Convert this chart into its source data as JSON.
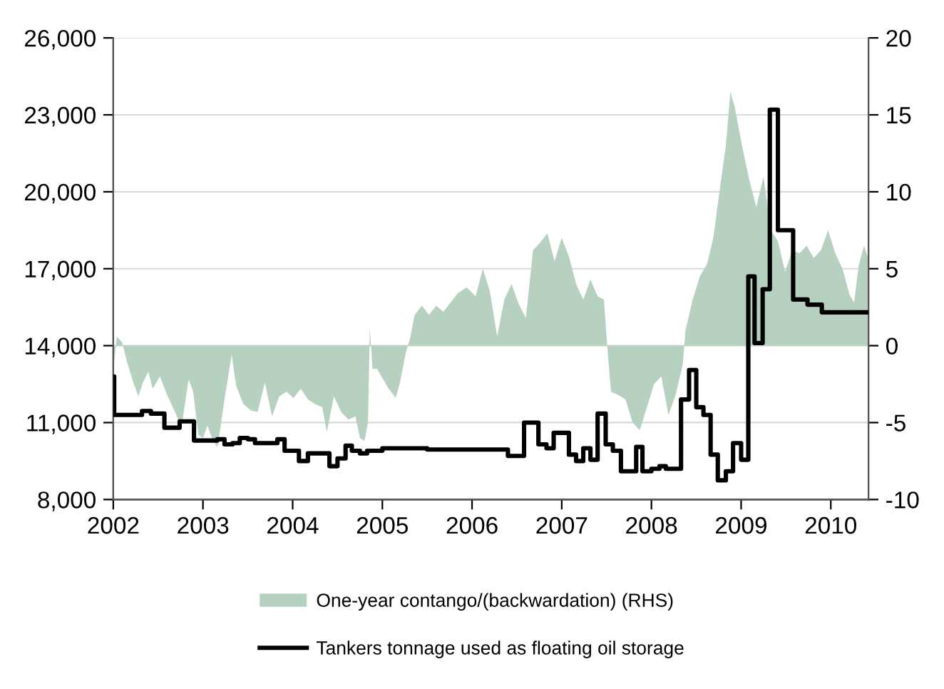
{
  "chart_data": {
    "type": "step",
    "xlim": [
      2002,
      2010.42
    ],
    "xticks": [
      2002,
      2003,
      2004,
      2005,
      2006,
      2007,
      2008,
      2009,
      2010
    ],
    "ylim": [
      8000,
      26000
    ],
    "yticks": [
      {
        "value": 8000,
        "label": "8,000"
      },
      {
        "value": 11000,
        "label": "11,000"
      },
      {
        "value": 14000,
        "label": "14,000"
      },
      {
        "value": 17000,
        "label": "17,000"
      },
      {
        "value": 20000,
        "label": "20,000"
      },
      {
        "value": 23000,
        "label": "23,000"
      },
      {
        "value": 26000,
        "label": "26,000"
      }
    ],
    "y2lim": [
      -10,
      20
    ],
    "y2ticks": [
      -10,
      -5,
      0,
      5,
      10,
      15,
      20
    ],
    "grid": "y",
    "legend": "bottom",
    "series": [
      {
        "name": "One-year contango/(backwardation) (RHS)",
        "type": "area",
        "axis": "y2",
        "color": "#b7d1c0",
        "x": [
          2002.0,
          2002.04,
          2002.1,
          2002.15,
          2002.23,
          2002.28,
          2002.33,
          2002.39,
          2002.44,
          2002.52,
          2002.6,
          2002.68,
          2002.76,
          2002.84,
          2002.89,
          2002.95,
          2003.0,
          2003.05,
          2003.1,
          2003.16,
          2003.19,
          2003.24,
          2003.32,
          2003.37,
          2003.45,
          2003.53,
          2003.61,
          2003.69,
          2003.77,
          2003.85,
          2003.93,
          2004.01,
          2004.09,
          2004.17,
          2004.25,
          2004.33,
          2004.38,
          2004.46,
          2004.54,
          2004.62,
          2004.7,
          2004.75,
          2004.8,
          2004.84,
          2004.86,
          2004.89,
          2004.94,
          2005.02,
          2005.07,
          2005.15,
          2005.2,
          2005.26,
          2005.31,
          2005.36,
          2005.44,
          2005.52,
          2005.6,
          2005.68,
          2005.76,
          2005.84,
          2005.94,
          2006.04,
          2006.12,
          2006.2,
          2006.28,
          2006.36,
          2006.44,
          2006.52,
          2006.6,
          2006.68,
          2006.76,
          2006.84,
          2006.92,
          2007.0,
          2007.08,
          2007.16,
          2007.24,
          2007.32,
          2007.4,
          2007.47,
          2007.52,
          2007.55,
          2007.63,
          2007.71,
          2007.79,
          2007.87,
          2007.95,
          2008.03,
          2008.11,
          2008.19,
          2008.27,
          2008.35,
          2008.38,
          2008.46,
          2008.54,
          2008.62,
          2008.69,
          2008.77,
          2008.83,
          2008.88,
          2008.93,
          2009.01,
          2009.09,
          2009.17,
          2009.25,
          2009.33,
          2009.41,
          2009.49,
          2009.57,
          2009.65,
          2009.73,
          2009.81,
          2009.89,
          2009.97,
          2010.05,
          2010.13,
          2010.21,
          2010.26,
          2010.31,
          2010.37,
          2010.41
        ],
        "values": [
          -1.6,
          0.6,
          0.2,
          -1.0,
          -2.5,
          -3.3,
          -2.4,
          -1.7,
          -2.8,
          -2.0,
          -3.2,
          -4.2,
          -5.3,
          -2.2,
          -3.0,
          -5.8,
          -6.0,
          -5.2,
          -6.0,
          -6.6,
          -5.5,
          -3.5,
          -0.6,
          -2.6,
          -3.8,
          -4.2,
          -4.3,
          -2.4,
          -4.6,
          -3.3,
          -3.0,
          -3.4,
          -2.8,
          -3.5,
          -3.8,
          -4.0,
          -5.6,
          -3.3,
          -4.3,
          -4.8,
          -4.6,
          -6.0,
          -6.2,
          -5.0,
          1.2,
          -1.5,
          -1.5,
          -2.3,
          -2.8,
          -3.4,
          -2.3,
          -0.5,
          0.5,
          2.0,
          2.6,
          2.0,
          2.6,
          2.2,
          2.8,
          3.4,
          3.8,
          3.2,
          5.0,
          3.5,
          0.6,
          3.0,
          4.0,
          2.7,
          1.8,
          6.2,
          6.7,
          7.3,
          5.5,
          7.0,
          5.8,
          4.0,
          3.0,
          4.3,
          3.2,
          3.0,
          -1.0,
          -3.0,
          -3.2,
          -3.5,
          -5.0,
          -5.5,
          -4.0,
          -2.5,
          -2.0,
          -4.5,
          -3.2,
          -1.2,
          1.0,
          3.0,
          4.5,
          5.3,
          7.0,
          10.5,
          13.0,
          16.5,
          15.5,
          13.0,
          10.8,
          9.0,
          11.0,
          7.5,
          6.8,
          4.8,
          6.2,
          6.0,
          6.5,
          5.7,
          6.2,
          7.5,
          6.0,
          5.0,
          3.3,
          2.8,
          5.2,
          6.5,
          5.8
        ]
      },
      {
        "name": "Tankers tonnage used as floating oil storage",
        "color": "#000000",
        "x": [
          2002.0,
          2002.01,
          2002.32,
          2002.42,
          2002.57,
          2002.74,
          2002.9,
          2003.16,
          2003.24,
          2003.33,
          2003.41,
          2003.5,
          2003.58,
          2003.83,
          2003.91,
          2004.07,
          2004.17,
          2004.41,
          2004.5,
          2004.59,
          2004.66,
          2004.75,
          2004.83,
          2005.0,
          2005.5,
          2006.4,
          2006.58,
          2006.74,
          2006.83,
          2006.91,
          2007.08,
          2007.16,
          2007.24,
          2007.32,
          2007.4,
          2007.49,
          2007.57,
          2007.66,
          2007.83,
          2007.9,
          2008.0,
          2008.09,
          2008.16,
          2008.33,
          2008.42,
          2008.5,
          2008.58,
          2008.66,
          2008.74,
          2008.83,
          2008.91,
          2009.0,
          2009.08,
          2009.15,
          2009.24,
          2009.32,
          2009.41,
          2009.58,
          2009.74,
          2009.9,
          2010.42
        ],
        "values": [
          12800,
          11300,
          11450,
          11350,
          10800,
          11050,
          10300,
          10350,
          10150,
          10200,
          10400,
          10350,
          10200,
          10350,
          9900,
          9500,
          9800,
          9300,
          9600,
          10100,
          9900,
          9800,
          9900,
          10000,
          9950,
          9700,
          11000,
          10150,
          10000,
          10600,
          9750,
          9500,
          10000,
          9550,
          11350,
          10150,
          9900,
          9100,
          10050,
          9100,
          9200,
          9300,
          9200,
          11900,
          13050,
          11600,
          11300,
          9750,
          8750,
          9100,
          10200,
          9550,
          16700,
          14100,
          16200,
          23200,
          18500,
          15800,
          15600,
          15300,
          15300
        ]
      }
    ]
  }
}
